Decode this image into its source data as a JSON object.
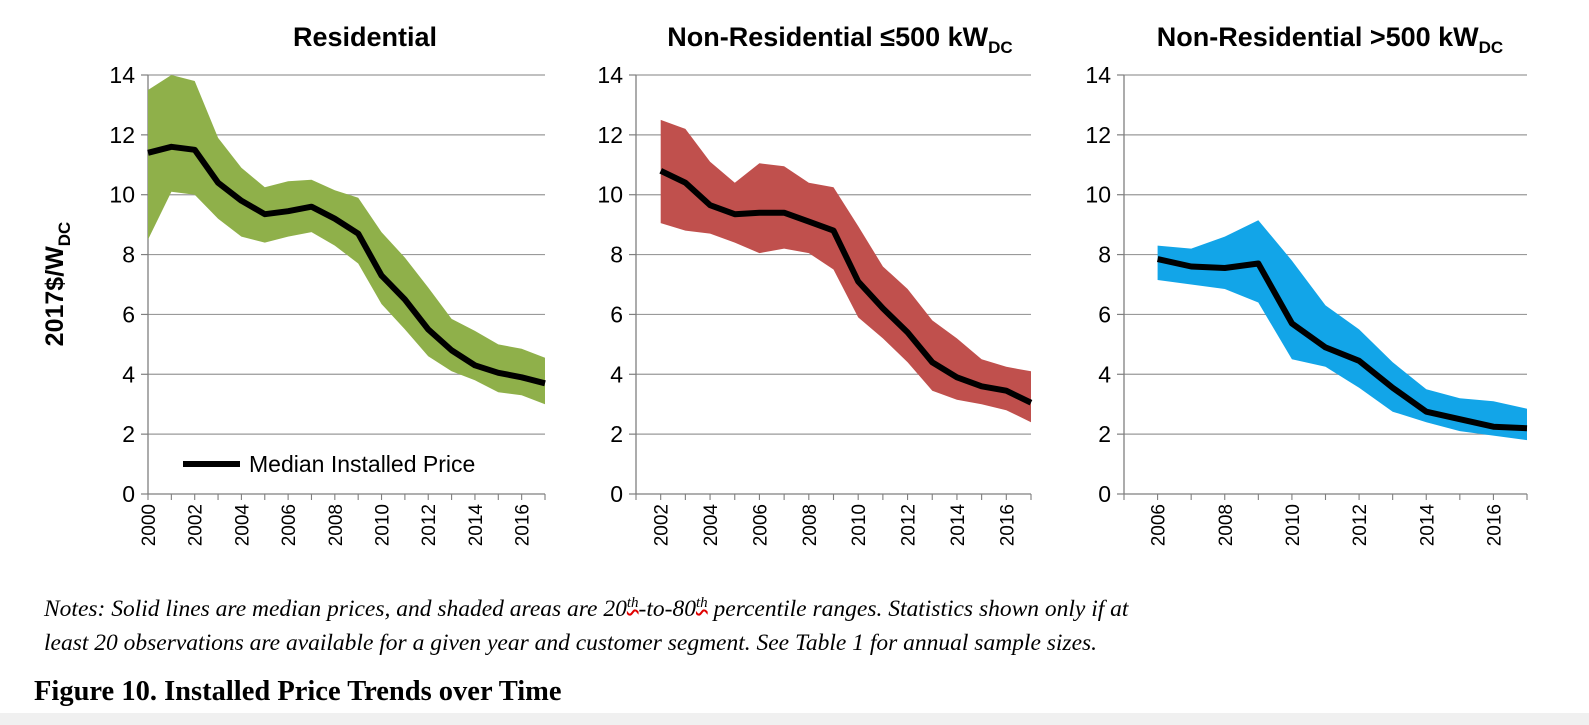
{
  "figure": {
    "notes": {
      "line1_a": "Notes: Solid lines are median prices, and shaded areas are 20",
      "sup1": "th",
      "mid": "-to-80",
      "sup2": "th",
      "line1_b": " percentile ranges. Statistics shown only if at",
      "line2": "least 20 observations are available for a given year and customer segment.  See Table 1 for annual sample sizes."
    },
    "caption": "Figure 10. Installed Price Trends over Time"
  },
  "chart_data": [
    {
      "type": "line",
      "title": "Residential",
      "title_sub": "",
      "ylabel": "2017$/W",
      "ylabel_sub": "DC",
      "ylim": [
        0,
        14
      ],
      "yticks": [
        0,
        2,
        4,
        6,
        8,
        10,
        12,
        14
      ],
      "xlim": [
        2000,
        2017
      ],
      "xticks": [
        "2000",
        "2002",
        "2004",
        "2006",
        "2008",
        "2010",
        "2012",
        "2014",
        "2016"
      ],
      "legend": "Median Installed Price",
      "band_color": "#8fb04a",
      "line_color": "#000000",
      "grid": true,
      "series": [
        {
          "name": "Median Installed Price",
          "x": [
            2000,
            2001,
            2002,
            2003,
            2004,
            2005,
            2006,
            2007,
            2008,
            2009,
            2010,
            2011,
            2012,
            2013,
            2014,
            2015,
            2016,
            2017
          ],
          "values": [
            11.4,
            11.6,
            11.5,
            10.4,
            9.8,
            9.35,
            9.45,
            9.6,
            9.2,
            8.7,
            7.3,
            6.5,
            5.5,
            4.8,
            4.3,
            4.05,
            3.9,
            3.7
          ]
        },
        {
          "x": [
            2000,
            2001,
            2002,
            2003,
            2004,
            2005,
            2006,
            2007,
            2008,
            2009,
            2010,
            2011,
            2012,
            2013,
            2014,
            2015,
            2016,
            2017
          ],
          "upper": [
            13.5,
            14.0,
            13.8,
            11.9,
            10.9,
            10.25,
            10.45,
            10.5,
            10.15,
            9.9,
            8.75,
            7.9,
            6.9,
            5.85,
            5.45,
            5.0,
            4.85,
            4.55
          ],
          "lower": [
            8.5,
            10.1,
            10.0,
            9.2,
            8.6,
            8.4,
            8.6,
            8.75,
            8.3,
            7.7,
            6.35,
            5.5,
            4.6,
            4.1,
            3.8,
            3.4,
            3.3,
            3.0
          ]
        }
      ]
    },
    {
      "type": "line",
      "title": "Non-Residential ≤500 kW",
      "title_sub": "DC",
      "ylim": [
        0,
        14
      ],
      "yticks": [
        0,
        2,
        4,
        6,
        8,
        10,
        12,
        14
      ],
      "xlim": [
        2001,
        2017
      ],
      "xticks": [
        "2002",
        "2004",
        "2006",
        "2008",
        "2010",
        "2012",
        "2014",
        "2016"
      ],
      "band_color": "#c0504d",
      "line_color": "#000000",
      "grid": true,
      "series": [
        {
          "x": [
            2002,
            2003,
            2004,
            2005,
            2006,
            2007,
            2008,
            2009,
            2010,
            2011,
            2012,
            2013,
            2014,
            2015,
            2016,
            2017
          ],
          "values": [
            10.8,
            10.4,
            9.65,
            9.35,
            9.4,
            9.4,
            9.1,
            8.8,
            7.1,
            6.2,
            5.4,
            4.4,
            3.9,
            3.6,
            3.45,
            3.05
          ]
        },
        {
          "x": [
            2002,
            2003,
            2004,
            2005,
            2006,
            2007,
            2008,
            2009,
            2010,
            2011,
            2012,
            2013,
            2014,
            2015,
            2016,
            2017
          ],
          "upper": [
            12.5,
            12.2,
            11.1,
            10.4,
            11.05,
            10.95,
            10.4,
            10.25,
            8.95,
            7.6,
            6.85,
            5.8,
            5.2,
            4.5,
            4.25,
            4.1
          ],
          "lower": [
            9.05,
            8.8,
            8.7,
            8.4,
            8.05,
            8.2,
            8.05,
            7.5,
            5.9,
            5.2,
            4.4,
            3.45,
            3.15,
            3.0,
            2.8,
            2.4
          ]
        }
      ]
    },
    {
      "type": "line",
      "title": "Non-Residential >500 kW",
      "title_sub": "DC",
      "ylim": [
        0,
        14
      ],
      "yticks": [
        0,
        2,
        4,
        6,
        8,
        10,
        12,
        14
      ],
      "xlim": [
        2005,
        2017
      ],
      "xticks": [
        "2006",
        "2008",
        "2010",
        "2012",
        "2014",
        "2016"
      ],
      "band_color": "#12a5e8",
      "line_color": "#000000",
      "grid": true,
      "series": [
        {
          "x": [
            2006,
            2007,
            2008,
            2009,
            2010,
            2011,
            2012,
            2013,
            2014,
            2015,
            2016,
            2017
          ],
          "values": [
            7.85,
            7.6,
            7.55,
            7.7,
            5.7,
            4.9,
            4.45,
            3.55,
            2.75,
            2.5,
            2.25,
            2.2
          ]
        },
        {
          "x": [
            2006,
            2007,
            2008,
            2009,
            2010,
            2011,
            2012,
            2013,
            2014,
            2015,
            2016,
            2017
          ],
          "upper": [
            8.3,
            8.2,
            8.6,
            9.15,
            7.8,
            6.3,
            5.5,
            4.4,
            3.5,
            3.2,
            3.1,
            2.85
          ],
          "lower": [
            7.15,
            7.0,
            6.85,
            6.4,
            4.5,
            4.25,
            3.55,
            2.75,
            2.4,
            2.1,
            1.95,
            1.8
          ]
        }
      ]
    }
  ]
}
